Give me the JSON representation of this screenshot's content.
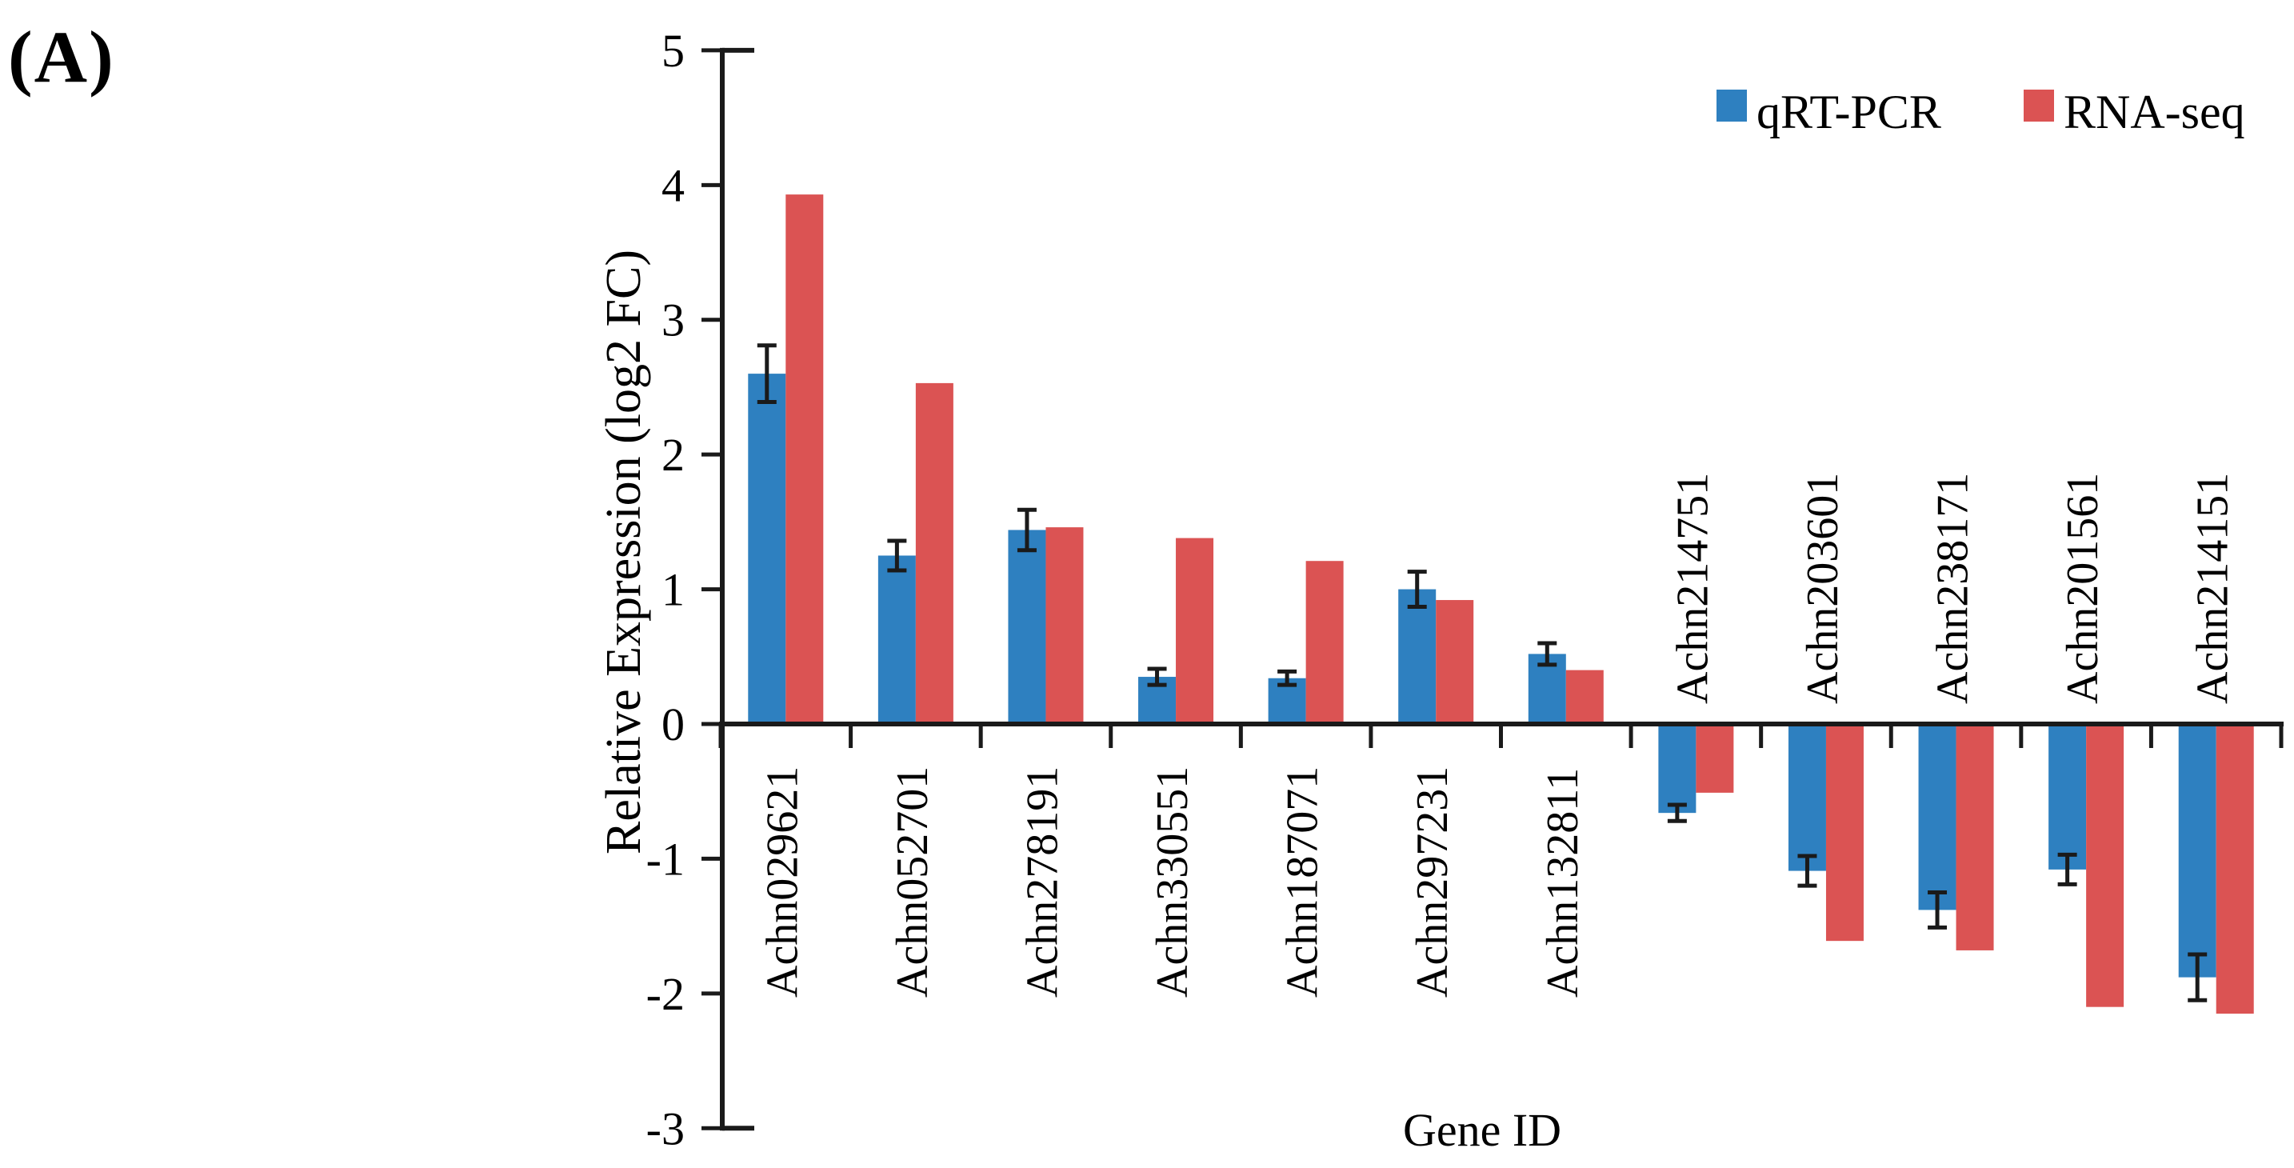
{
  "panel_label": "(A)",
  "chart_data": {
    "type": "bar",
    "title": "",
    "xlabel": "Gene ID",
    "ylabel": "Relative Expression (log2 FC)",
    "ylim": [
      -3,
      5
    ],
    "ytick_step": 1,
    "grid": false,
    "legend_position": "top-right-inside",
    "categories": [
      "Achn029621",
      "Achn052701",
      "Achn278191",
      "Achn330551",
      "Achn187071",
      "Achn297231",
      "Achn132811",
      "Achn214751",
      "Achn203601",
      "Achn238171",
      "Achn201561",
      "Achn214151"
    ],
    "series": [
      {
        "name": "qRT-PCR",
        "color": "#2e80c0",
        "values": [
          2.6,
          1.25,
          1.44,
          0.35,
          0.34,
          1.0,
          0.52,
          -0.66,
          -1.09,
          -1.38,
          -1.08,
          -1.88
        ],
        "errors": [
          0.21,
          0.11,
          0.15,
          0.06,
          0.05,
          0.13,
          0.08,
          0.06,
          0.11,
          0.13,
          0.11,
          0.17
        ]
      },
      {
        "name": "RNA-seq",
        "color": "#db5353",
        "values": [
          3.93,
          2.53,
          1.46,
          1.38,
          1.21,
          0.92,
          0.4,
          -0.51,
          -1.61,
          -1.68,
          -2.1,
          -2.15
        ],
        "errors": null
      }
    ]
  },
  "colors": {
    "qrt_pcr_blue": "#2e80c0",
    "rna_seq_red": "#db5353",
    "axis_black": "#1a1a1a"
  }
}
